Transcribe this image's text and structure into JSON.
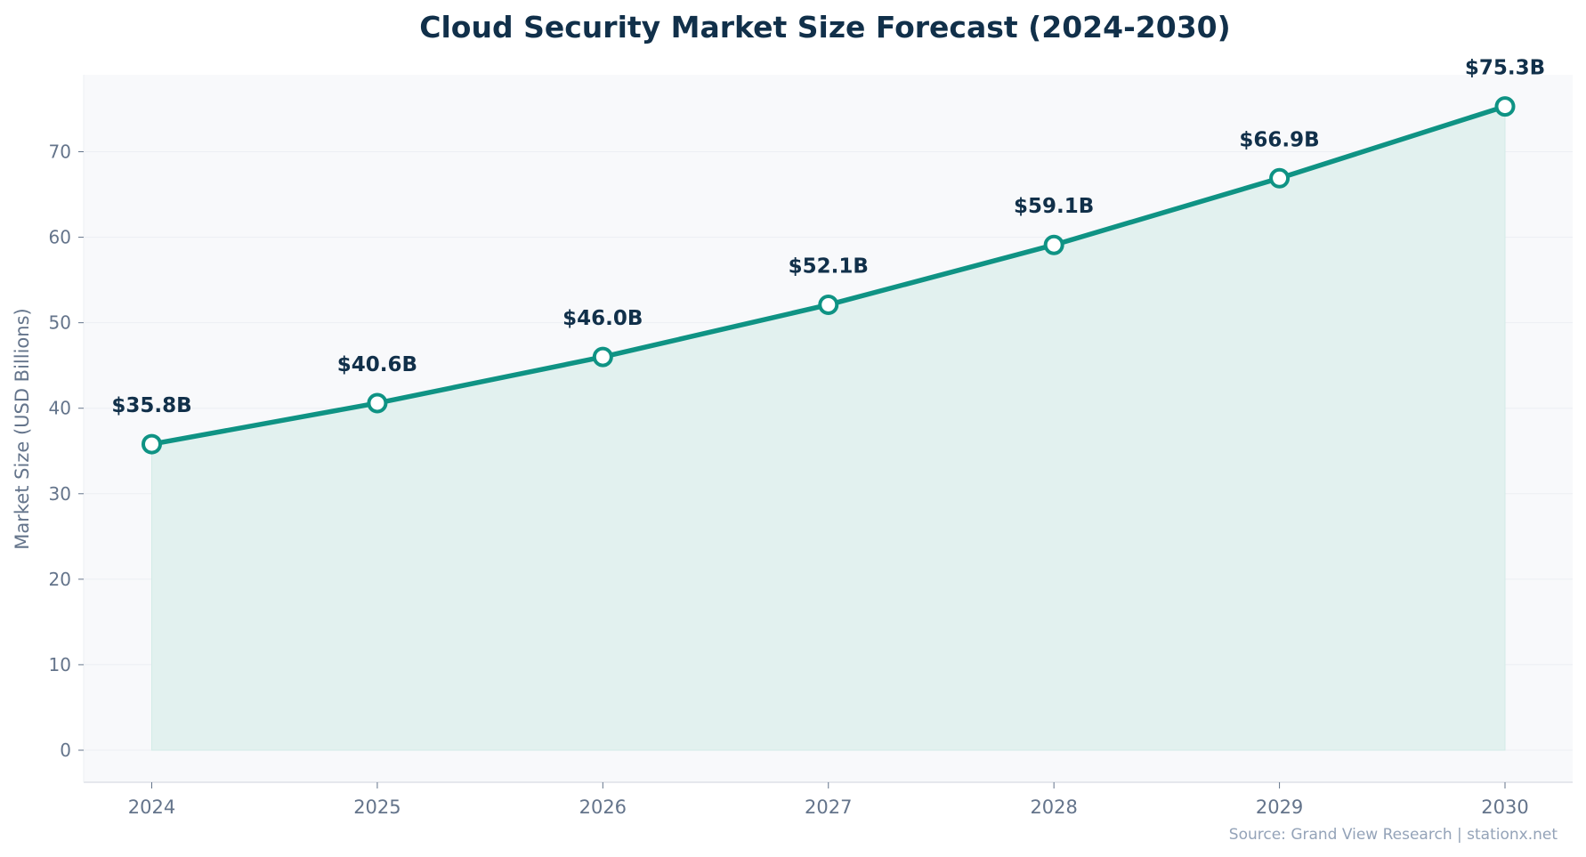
{
  "chart_data": {
    "type": "area",
    "title": "Cloud Security Market Size Forecast (2024-2030)",
    "xlabel": "",
    "ylabel": "Market Size (USD Billions)",
    "x": [
      "2024",
      "2025",
      "2026",
      "2027",
      "2028",
      "2029",
      "2030"
    ],
    "values": [
      35.8,
      40.6,
      46.0,
      52.1,
      59.1,
      66.9,
      75.3
    ],
    "data_labels": [
      "$35.8B",
      "$40.6B",
      "$46.0B",
      "$52.1B",
      "$59.1B",
      "$66.9B",
      "$75.3B"
    ],
    "yticks": [
      0,
      10,
      20,
      30,
      40,
      50,
      60,
      70
    ],
    "ylim": [
      -3.8,
      79
    ],
    "grid": true,
    "source": "Source: Grand View Research | stationx.net",
    "colors": {
      "line": "#0f9384",
      "fill": "#e2f1ef",
      "plot_bg": "#f8f9fb",
      "text": "#11304a",
      "tick": "#64748b"
    }
  }
}
